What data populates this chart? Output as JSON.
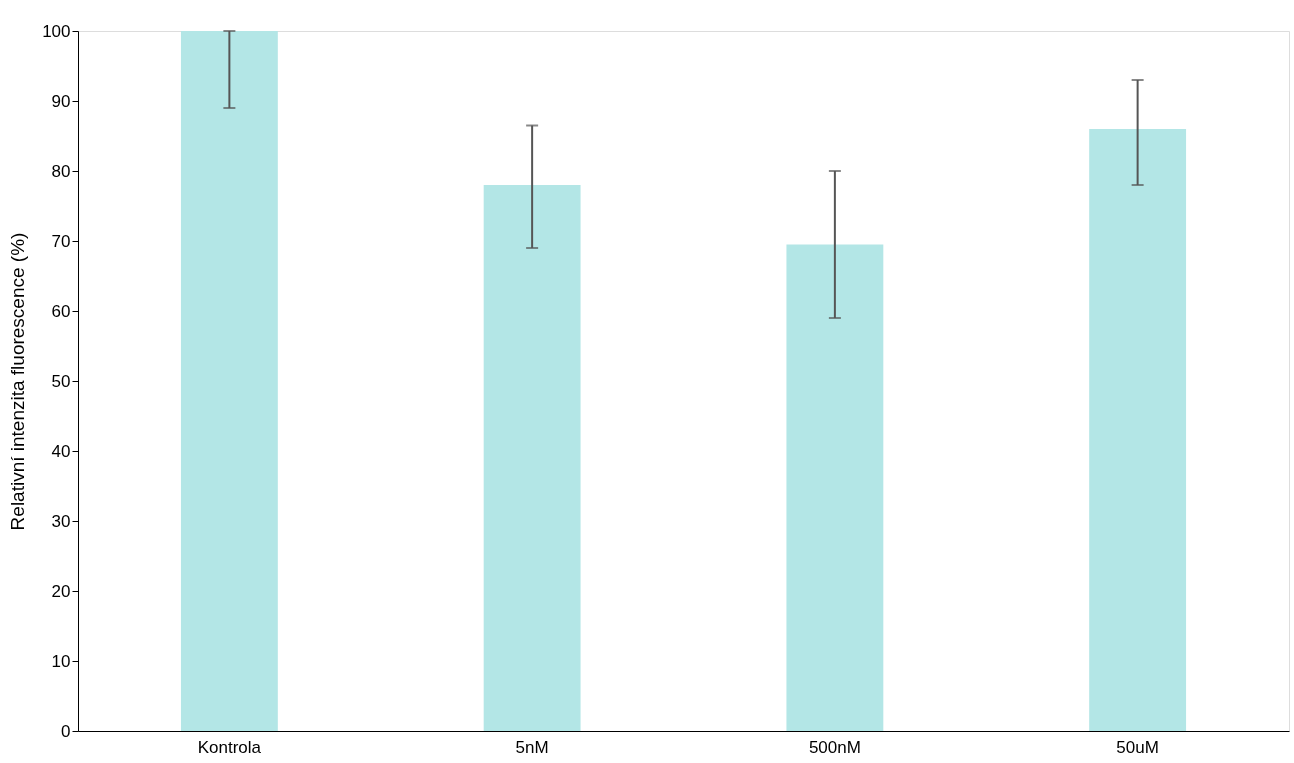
{
  "chart_data": {
    "type": "bar",
    "ylabel": "Relativní intenzita fluorescence (%)",
    "categories": [
      "Kontrola",
      "5nM",
      "500nM",
      "50uM"
    ],
    "values": [
      100,
      78,
      69.5,
      86
    ],
    "errors": [
      [
        89,
        100
      ],
      [
        69,
        86.5
      ],
      [
        59,
        80
      ],
      [
        78,
        93
      ]
    ],
    "color": "#b3e6e6",
    "ylim": [
      0,
      100
    ],
    "yticks": [
      0,
      10,
      20,
      30,
      40,
      50,
      60,
      70,
      80,
      90,
      100
    ],
    "grid": false
  }
}
